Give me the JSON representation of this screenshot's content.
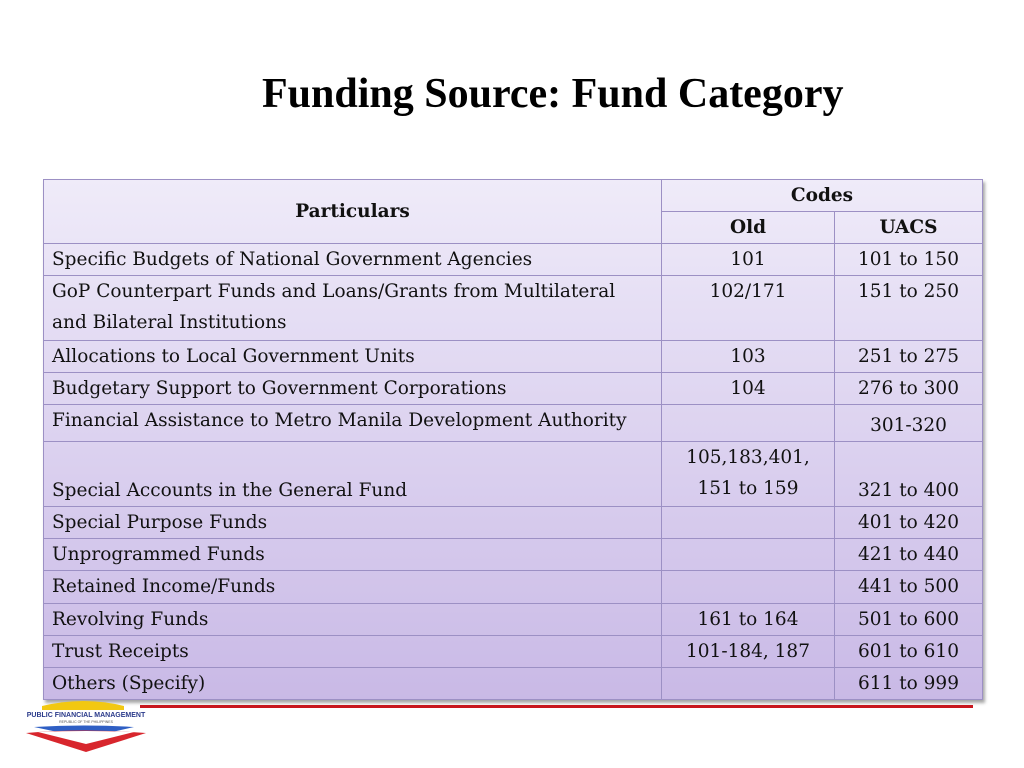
{
  "title": "Funding Source: Fund Category",
  "table": {
    "headers": {
      "particulars": "Particulars",
      "codes": "Codes",
      "old": "Old",
      "uacs": "UACS"
    },
    "rows": [
      {
        "particulars": "Specific Budgets of National Government Agencies",
        "old": "101",
        "uacs": "101 to 150"
      },
      {
        "particulars": "GoP Counterpart Funds and Loans/Grants from Multilateral and Bilateral Institutions",
        "old": "102/171",
        "uacs": "151 to 250"
      },
      {
        "particulars": "Allocations to Local Government Units",
        "old": "103",
        "uacs": "251 to 275"
      },
      {
        "particulars": "Budgetary Support to Government Corporations",
        "old": "104",
        "uacs": "276 to 300"
      },
      {
        "particulars": "Financial Assistance to Metro Manila Development Authority",
        "old": "",
        "uacs": "301-320"
      },
      {
        "particulars": "Special Accounts in the General Fund",
        "old": "105,183,401, 151 to 159",
        "uacs": "321 to 400"
      },
      {
        "particulars": "Special Purpose Funds",
        "old": "",
        "uacs": "401 to 420"
      },
      {
        "particulars": "Unprogrammed Funds",
        "old": "",
        "uacs": "421 to 440"
      },
      {
        "particulars": "Retained Income/Funds",
        "old": "",
        "uacs": "441 to 500"
      },
      {
        "particulars": "Revolving Funds",
        "old": "161 to 164",
        "uacs": "501 to 600"
      },
      {
        "particulars": "Trust Receipts",
        "old": "101-184, 187",
        "uacs": "601 to 610"
      },
      {
        "particulars": "Others (Specify)",
        "old": "",
        "uacs": "611 to 999"
      }
    ]
  },
  "logo": {
    "text": "PUBLIC FINANCIAL MANAGEMENT",
    "subtext": "REPUBLIC OF THE PHILIPPINES"
  },
  "colors": {
    "accent_rule": "#c8161d",
    "table_border": "#9c90c4"
  }
}
